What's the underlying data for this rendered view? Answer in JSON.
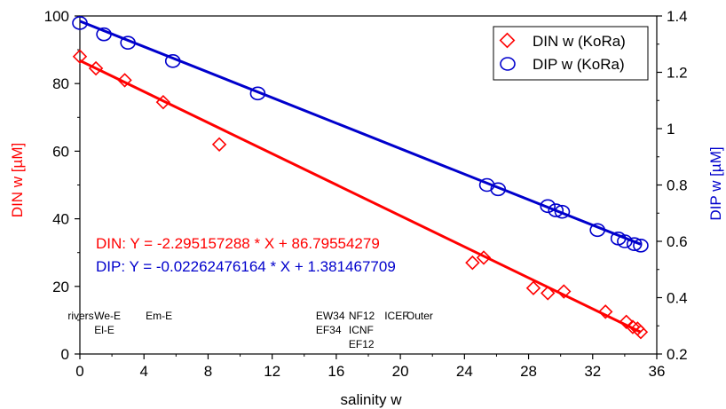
{
  "chart_data": {
    "type": "scatter",
    "xlabel": "salinity w",
    "ylabel_left": "DIN w [µM]",
    "ylabel_right": "DIP w [µM]",
    "xlim": [
      0,
      36
    ],
    "ylim_left": [
      0,
      100
    ],
    "ylim_right": [
      0.2,
      1.4
    ],
    "x_ticks": [
      0,
      4,
      8,
      12,
      16,
      20,
      24,
      28,
      32,
      36
    ],
    "y_left_ticks": [
      0,
      20,
      40,
      60,
      80,
      100
    ],
    "y_right_ticks": [
      0.2,
      0.4,
      0.6,
      0.8,
      1,
      1.2,
      1.4
    ],
    "x_tick_labels": [
      "0",
      "4",
      "8",
      "12",
      "16",
      "20",
      "24",
      "28",
      "32",
      "36"
    ],
    "y_left_tick_labels": [
      "0",
      "20",
      "40",
      "60",
      "80",
      "100"
    ],
    "y_right_tick_labels": [
      "0.2",
      "0.4",
      "0.6",
      "0.8",
      "1",
      "1.2",
      "1.4"
    ],
    "grid": false,
    "legend_position": "top-right",
    "colors": {
      "din": "#ff0000",
      "dip": "#0000cc"
    },
    "series": [
      {
        "name": "DIN w (KoRa)",
        "axis": "left",
        "marker": "diamond",
        "x": [
          0,
          1.0,
          2.8,
          5.2,
          8.7,
          24.5,
          25.2,
          28.3,
          29.2,
          30.2,
          32.8,
          34.1,
          34.5,
          34.8,
          35.0
        ],
        "y": [
          88,
          84.5,
          81,
          74.5,
          62,
          27,
          28.5,
          19.5,
          18,
          18.5,
          12.5,
          9.5,
          8,
          7.5,
          6.5
        ]
      },
      {
        "name": "DIP w (KoRa)",
        "axis": "right",
        "marker": "circle",
        "x": [
          0,
          1.5,
          3.0,
          5.8,
          11.1,
          25.4,
          26.1,
          29.2,
          29.7,
          30.1,
          32.3,
          33.6,
          34.0,
          34.6,
          35.0
        ],
        "y": [
          1.375,
          1.335,
          1.305,
          1.24,
          1.125,
          0.8,
          0.785,
          0.725,
          0.71,
          0.705,
          0.64,
          0.61,
          0.6,
          0.59,
          0.585
        ]
      }
    ],
    "fits": [
      {
        "series": "DIN w (KoRa)",
        "axis": "left",
        "slope": -2.295157288,
        "intercept": 86.79554279,
        "x_range": [
          0,
          35
        ]
      },
      {
        "series": "DIP w (KoRa)",
        "axis": "right",
        "slope": -0.02262476164,
        "intercept": 1.381467709,
        "x_range": [
          0,
          35
        ]
      }
    ],
    "equations": {
      "din": "DIN:  Y = -2.295157288 * X + 86.79554279",
      "dip": "DIP: Y = -0.02262476164 * X + 1.381467709"
    },
    "region_labels": [
      {
        "lines": [
          "rivers"
        ],
        "x": 1.9
      },
      {
        "lines": [
          "We-E",
          "El-E"
        ],
        "x": 6.5
      },
      {
        "lines": [
          "Em-E"
        ],
        "x": 15.4
      },
      {
        "lines": [
          "EW34",
          "EF34"
        ],
        "x": 44.9
      },
      {
        "lines": [
          "NF12",
          "ICNF",
          "EF12"
        ],
        "x": 50.6
      },
      {
        "lines": [
          "ICEF"
        ],
        "x": 56.8
      },
      {
        "lines": [
          "Outer"
        ],
        "x": 60.6
      }
    ]
  }
}
